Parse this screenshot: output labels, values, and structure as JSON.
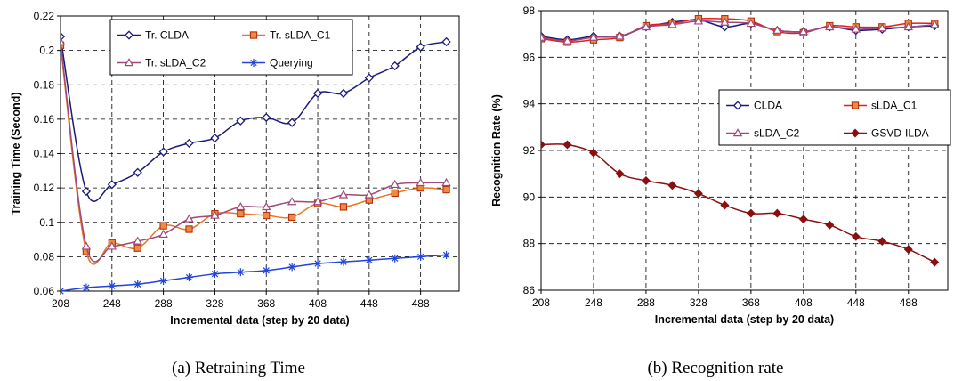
{
  "chart_data": [
    {
      "type": "line",
      "caption": "(a) Retraining Time",
      "xlabel": "Incremental data (step by 20 data)",
      "ylabel": "Training Time (Second)",
      "xlim": [
        208,
        518
      ],
      "ylim": [
        0.06,
        0.22
      ],
      "xticks": [
        "208",
        "248",
        "288",
        "328",
        "368",
        "408",
        "448",
        "488"
      ],
      "yticks": [
        "0.06",
        "0.08",
        "0.1",
        "0.12",
        "0.14",
        "0.16",
        "0.18",
        "0.2",
        "0.22"
      ],
      "grid": true,
      "legend_position": "top-right",
      "series": [
        {
          "name": "Tr. CLDA",
          "color": "#1a1a7a",
          "marker": "diamond",
          "x": [
            208,
            228,
            248,
            268,
            288,
            308,
            328,
            348,
            368,
            388,
            408,
            428,
            448,
            468,
            488,
            508
          ],
          "y": [
            0.208,
            0.118,
            0.122,
            0.129,
            0.141,
            0.146,
            0.149,
            0.159,
            0.161,
            0.158,
            0.175,
            0.175,
            0.184,
            0.191,
            0.202,
            0.205
          ]
        },
        {
          "name": "Tr. sLDA_C1",
          "color": "#e87722",
          "marker": "square",
          "x": [
            208,
            228,
            248,
            268,
            288,
            308,
            328,
            348,
            368,
            388,
            408,
            428,
            448,
            468,
            488,
            508
          ],
          "y": [
            0.203,
            0.083,
            0.088,
            0.085,
            0.098,
            0.096,
            0.105,
            0.105,
            0.104,
            0.103,
            0.111,
            0.109,
            0.113,
            0.117,
            0.12,
            0.119
          ]
        },
        {
          "name": "Tr. sLDA_C2",
          "color": "#a0487a",
          "marker": "triangle",
          "x": [
            208,
            228,
            248,
            268,
            288,
            308,
            328,
            348,
            368,
            388,
            408,
            428,
            448,
            468,
            488,
            508
          ],
          "y": [
            0.205,
            0.086,
            0.086,
            0.089,
            0.093,
            0.102,
            0.104,
            0.109,
            0.109,
            0.112,
            0.112,
            0.116,
            0.116,
            0.122,
            0.123,
            0.123
          ]
        },
        {
          "name": "Querying",
          "color": "#2244dd",
          "marker": "star",
          "x": [
            208,
            228,
            248,
            268,
            288,
            308,
            328,
            348,
            368,
            388,
            408,
            428,
            448,
            468,
            488,
            508
          ],
          "y": [
            0.06,
            0.062,
            0.063,
            0.064,
            0.066,
            0.068,
            0.07,
            0.071,
            0.072,
            0.074,
            0.076,
            0.077,
            0.078,
            0.079,
            0.08,
            0.081
          ]
        }
      ]
    },
    {
      "type": "line",
      "caption": "(b) Recognition rate",
      "xlabel": "Incremental data (step by 20 data)",
      "ylabel": "Recognition Rate (%)",
      "xlim": [
        208,
        518
      ],
      "ylim": [
        86,
        98
      ],
      "xticks": [
        "208",
        "248",
        "288",
        "328",
        "368",
        "408",
        "448",
        "488"
      ],
      "yticks": [
        "86",
        "88",
        "90",
        "92",
        "94",
        "96",
        "98"
      ],
      "grid": true,
      "legend_position": "center-right",
      "series": [
        {
          "name": "CLDA",
          "color": "#1a1a7a",
          "marker": "diamond",
          "x": [
            208,
            228,
            248,
            268,
            288,
            308,
            328,
            348,
            368,
            388,
            408,
            428,
            448,
            468,
            488,
            508
          ],
          "y": [
            96.9,
            96.75,
            96.9,
            96.9,
            97.3,
            97.5,
            97.6,
            97.3,
            97.45,
            97.15,
            97.1,
            97.3,
            97.15,
            97.2,
            97.3,
            97.35
          ]
        },
        {
          "name": "sLDA_C1",
          "color": "#e02020",
          "marker": "square",
          "x": [
            208,
            228,
            248,
            268,
            288,
            308,
            328,
            348,
            368,
            388,
            408,
            428,
            448,
            468,
            488,
            508
          ],
          "y": [
            96.8,
            96.65,
            96.75,
            96.85,
            97.35,
            97.45,
            97.65,
            97.65,
            97.55,
            97.1,
            97.05,
            97.35,
            97.3,
            97.3,
            97.45,
            97.45
          ]
        },
        {
          "name": "sLDA_C2",
          "color": "#a0487a",
          "marker": "triangle",
          "x": [
            208,
            228,
            248,
            268,
            288,
            308,
            328,
            348,
            368,
            388,
            408,
            428,
            448,
            468,
            488,
            508
          ],
          "y": [
            96.85,
            96.7,
            96.85,
            96.9,
            97.3,
            97.4,
            97.55,
            97.5,
            97.45,
            97.15,
            97.1,
            97.3,
            97.2,
            97.25,
            97.3,
            97.4
          ]
        },
        {
          "name": "GSVD-ILDA",
          "color": "#8b0f0f",
          "marker": "diamond-filled",
          "x": [
            208,
            228,
            248,
            268,
            288,
            308,
            328,
            348,
            368,
            388,
            408,
            428,
            448,
            468,
            488,
            508
          ],
          "y": [
            92.25,
            92.25,
            91.9,
            91.0,
            90.7,
            90.5,
            90.15,
            89.65,
            89.3,
            89.3,
            89.05,
            88.8,
            88.3,
            88.1,
            87.75,
            87.2
          ]
        }
      ]
    }
  ]
}
